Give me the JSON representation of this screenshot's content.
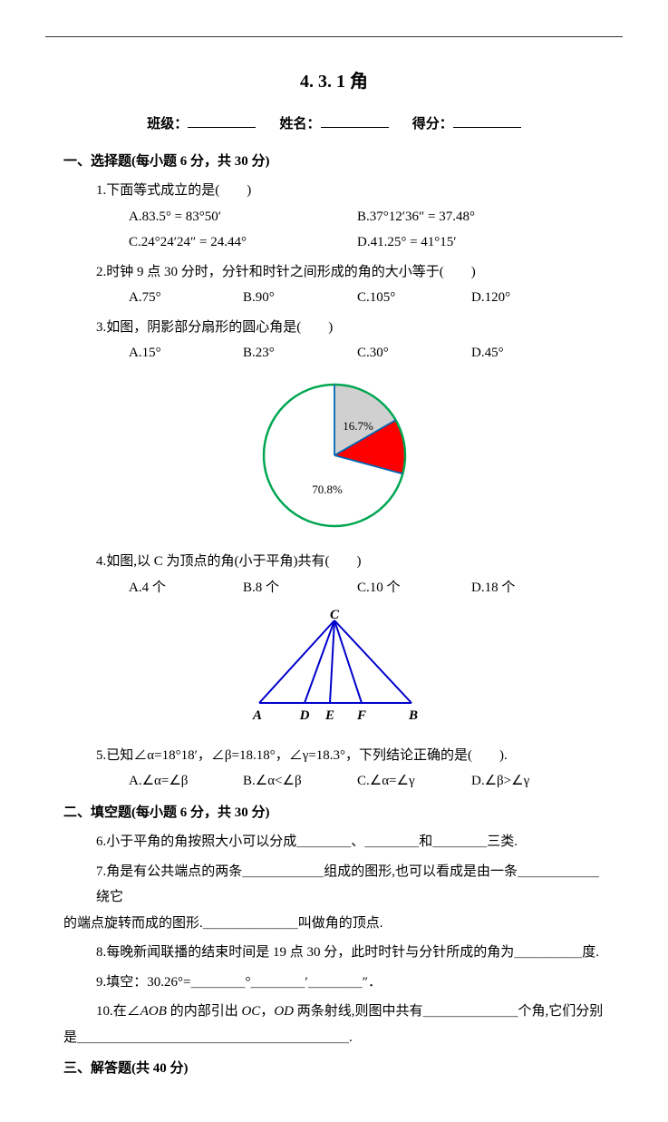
{
  "title": "4. 3. 1 角",
  "header": {
    "class_label": "班级：",
    "name_label": "姓名：",
    "score_label": "得分："
  },
  "section1": {
    "heading": "一、选择题(每小题 6 分，共 30 分)",
    "q1": {
      "text": "1.下面等式成立的是(　　)",
      "a": "A.83.5° = 83°50′",
      "b": "B.37°12′36″ = 37.48°",
      "c": "C.24°24′24″ = 24.44°",
      "d": "D.41.25° = 41°15′"
    },
    "q2": {
      "text": "2.时钟 9 点 30 分时，分针和时针之间形成的角的大小等于(　　)",
      "a": "A.75°",
      "b": "B.90°",
      "c": "C.105°",
      "d": "D.120°"
    },
    "q3": {
      "text": "3.如图，阴影部分扇形的圆心角是(　　)",
      "a": "A.15°",
      "b": "B.23°",
      "c": "C.30°",
      "d": "D.45°",
      "pie": {
        "label1": "16.7%",
        "label2": "70.8%",
        "white_pct": 70.8,
        "grey_pct": 16.7,
        "red_pct": 12.5,
        "circle_stroke": "#00a651",
        "radius_stroke": "#0066b3",
        "red_fill": "#ff0000",
        "grey_fill": "#d0d0d0",
        "white_fill": "#ffffff",
        "text_color": "#000000",
        "svg_size": 200,
        "r": 78
      }
    },
    "q4": {
      "text": "4.如图,以 C 为顶点的角(小于平角)共有(　　)",
      "a": "A.4 个",
      "b": "B.8 个",
      "c": "C.10 个",
      "d": "D.18 个",
      "tri": {
        "stroke": "#0000cc",
        "labels": {
          "c": "C",
          "a": "A",
          "d": "D",
          "e": "E",
          "f": "F",
          "b": "B"
        },
        "label_style": "italic bold"
      }
    },
    "q5": {
      "text": "5.已知∠α=18°18′，∠β=18.18°，∠γ=18.3°，下列结论正确的是(　　).",
      "a": "A.∠α=∠β",
      "b": "B.∠α<∠β",
      "c": "C.∠α=∠γ",
      "d": "D.∠β>∠γ"
    }
  },
  "section2": {
    "heading": "二、填空题(每小题 6 分，共 30 分)",
    "q6": "6.小于平角的角按照大小可以分成＿＿＿＿、＿＿＿＿和＿＿＿＿三类.",
    "q7a": "7.角是有公共端点的两条＿＿＿＿＿＿组成的图形,也可以看成是由一条＿＿＿＿＿＿绕它",
    "q7b": "的端点旋转而成的图形.＿＿＿＿＿＿＿叫做角的顶点.",
    "q8": "8.每晚新闻联播的结束时间是 19 点 30 分，此时时针与分针所成的角为＿＿＿＿＿度.",
    "q9": "9.填空：30.26°=＿＿＿＿°＿＿＿＿′＿＿＿＿″．",
    "q10a_pre": "10.在∠",
    "q10a_aob": "AOB",
    "q10a_mid": " 的内部引出 ",
    "q10a_oc": "OC",
    "q10a_sep": "，",
    "q10a_od": "OD",
    "q10a_post": " 两条射线,则图中共有＿＿＿＿＿＿＿个角,它们分别",
    "q10b": "是＿＿＿＿＿＿＿＿＿＿＿＿＿＿＿＿＿＿＿＿."
  },
  "section3": {
    "heading": "三、解答题(共 40 分)"
  }
}
